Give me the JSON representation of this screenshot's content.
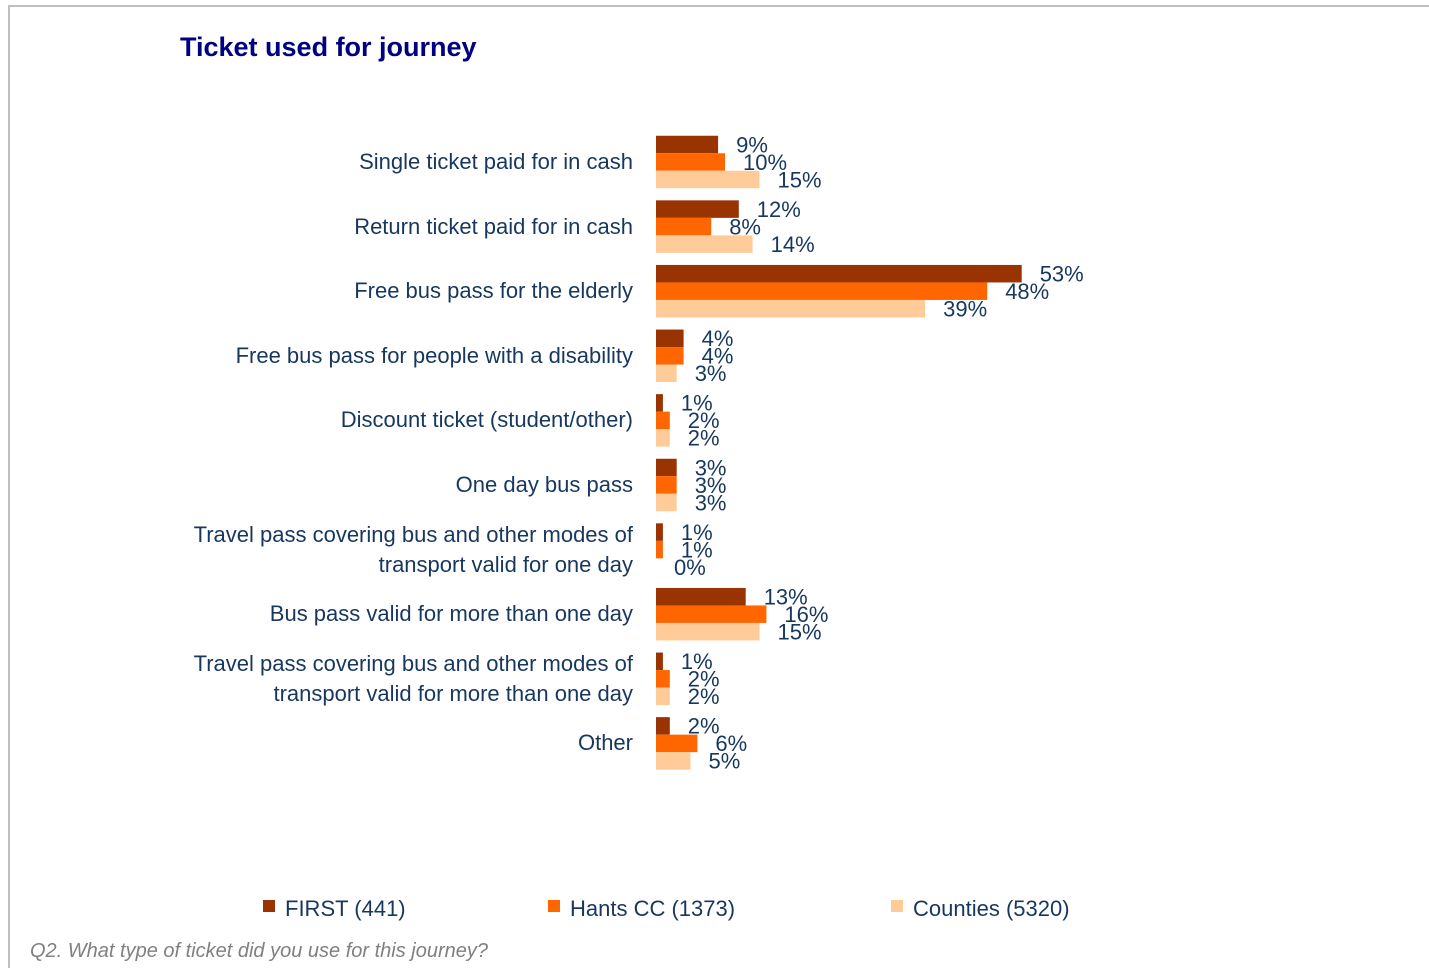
{
  "chart_data": {
    "type": "bar",
    "orientation": "horizontal",
    "title": "Ticket used for journey",
    "categories": [
      "Single ticket paid for in cash",
      "Return ticket paid for in cash",
      "Free bus pass for the elderly",
      "Free bus pass for people with a disability",
      "Discount ticket (student/other)",
      "One day bus pass",
      "Travel pass covering bus and other modes of\ntransport valid for one day",
      "Bus pass valid for more than one day",
      "Travel pass covering bus and other modes of\ntransport valid for more than one day",
      "Other"
    ],
    "series": [
      {
        "name": "FIRST (441)",
        "color": "#993300",
        "values": [
          9,
          12,
          53,
          4,
          1,
          3,
          1,
          13,
          1,
          2
        ],
        "value_labels": [
          "9%",
          "12%",
          "53%",
          "4%",
          "1%",
          "3%",
          "1%",
          "13%",
          "1%",
          "2%"
        ]
      },
      {
        "name": "Hants CC (1373)",
        "color": "#ff6600",
        "values": [
          10,
          8,
          48,
          4,
          2,
          3,
          1,
          16,
          2,
          6
        ],
        "value_labels": [
          "10%",
          "8%",
          "48%",
          "4%",
          "2%",
          "3%",
          "1%",
          "16%",
          "2%",
          "6%"
        ]
      },
      {
        "name": "Counties (5320)",
        "color": "#ffcc99",
        "values": [
          15,
          14,
          39,
          3,
          2,
          3,
          0,
          15,
          2,
          5
        ],
        "value_labels": [
          "15%",
          "14%",
          "39%",
          "3%",
          "2%",
          "3%",
          "0%",
          "15%",
          "2%",
          "5%"
        ]
      }
    ],
    "legend": "bottom",
    "footnote": "Q2.  What type of ticket did you use for this journey?"
  }
}
